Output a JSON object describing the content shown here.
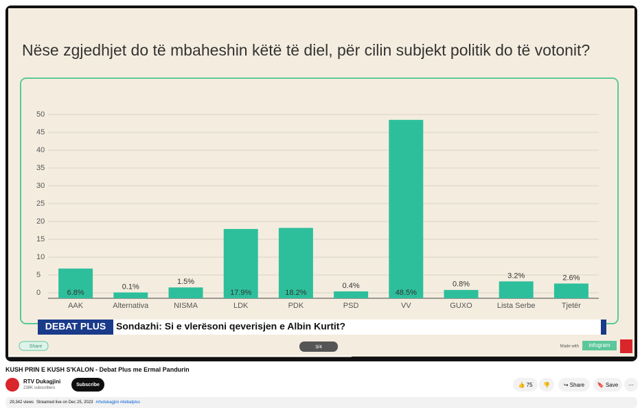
{
  "chart_data": {
    "type": "bar",
    "title": "Nëse zgjedhjet do të mbaheshin këtë të diel, për cilin subjekt politik do të votonit?",
    "categories": [
      "AAK",
      "Alternativa",
      "NISMA",
      "LDK",
      "PDK",
      "PSD",
      "VV",
      "GUXO",
      "Lista Serbe",
      "Tjetër"
    ],
    "values": [
      6.8,
      0.1,
      1.5,
      17.9,
      18.2,
      0.4,
      48.5,
      0.8,
      3.2,
      2.6
    ],
    "value_labels": [
      "6.8%",
      "0.1%",
      "1.5%",
      "17.9%",
      "18.2%",
      "0.4%",
      "48.5%",
      "0.8%",
      "3.2%",
      "2.6%"
    ],
    "color": "#2dbf9b",
    "ylim": [
      0,
      50
    ],
    "yticks": [
      0,
      5,
      10,
      15,
      20,
      25,
      30,
      35,
      40,
      45,
      50
    ],
    "grid": true
  },
  "overlay": {
    "brand": "DEBAT PLUS",
    "headline": "Sondazhi: Si e vlerësoni qeverisjen e Albin Kurtit?",
    "share": "Share",
    "pager": "3/4",
    "made_with": "Made with",
    "maker": "infogram"
  },
  "video": {
    "title": "KUSH PRIN E KUSH S'KALON - Debat Plus me Ermal Pandurin",
    "channel": "RTV Dukagjini",
    "subscribers": "238K subscribers",
    "subscribe": "Subscribe",
    "likes": 75,
    "share": "Share",
    "save": "Save",
    "views": "29,342 views",
    "streamed": "Streamed live on Dec 25, 2023",
    "hashtags": "#rtvdukagjini #debatplus"
  }
}
